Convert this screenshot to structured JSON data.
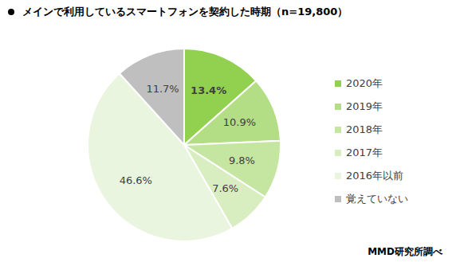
{
  "chart_data": {
    "type": "pie",
    "title": "メインで利用しているスマートフォンを契約した時期（n=19,800）",
    "source": "MMD研究所調べ",
    "categories": [
      "2020年",
      "2019年",
      "2018年",
      "2017年",
      "2016年以前",
      "覚えていない"
    ],
    "values": [
      13.4,
      10.9,
      9.8,
      7.6,
      46.6,
      11.7
    ],
    "value_labels": [
      "13.4%",
      "10.9%",
      "9.8%",
      "7.6%",
      "46.6%",
      "11.7%"
    ],
    "colors": [
      "#92d050",
      "#b3de85",
      "#c5e6a1",
      "#d8eec0",
      "#eaf5df",
      "#bfbfbf"
    ],
    "data_labels": true,
    "legend": "right"
  }
}
